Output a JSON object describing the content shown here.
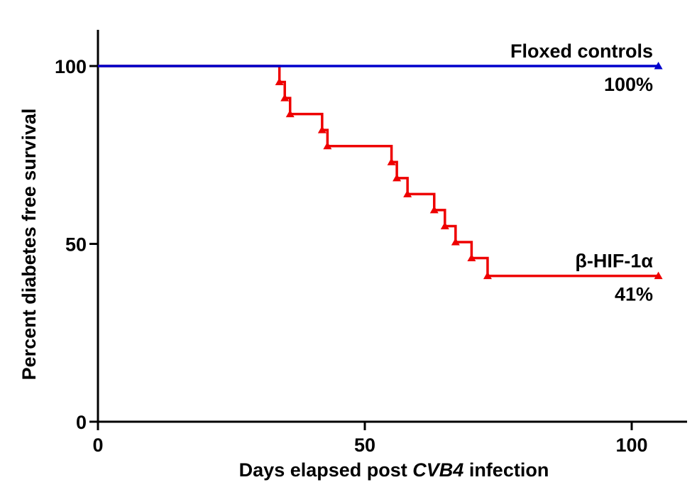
{
  "chart_data": {
    "type": "line",
    "step": true,
    "xlabel_parts": [
      "Days elapsed post ",
      "CVB4",
      " infection"
    ],
    "ylabel": "Percent diabetes free survival",
    "xlim": [
      0,
      110
    ],
    "ylim": [
      0,
      110
    ],
    "xticks": [
      0,
      50,
      100
    ],
    "yticks": [
      0,
      50,
      100
    ],
    "xtick_labels": [
      "0",
      "50",
      "100"
    ],
    "ytick_labels": [
      "0",
      "50",
      "100"
    ],
    "series": [
      {
        "name": "Floxed controls",
        "color": "#0000cc",
        "marker": "triangle",
        "steps": [
          [
            0,
            100
          ],
          [
            105,
            100
          ]
        ],
        "markers": [
          [
            105,
            100
          ]
        ],
        "end_label": "100%"
      },
      {
        "name": "β-HIF-1α",
        "color": "#ee0000",
        "marker": "triangle",
        "steps": [
          [
            0,
            100
          ],
          [
            34,
            95.5
          ],
          [
            35,
            91
          ],
          [
            36,
            86.5
          ],
          [
            42,
            82
          ],
          [
            43,
            77.5
          ],
          [
            55,
            73
          ],
          [
            56,
            68.5
          ],
          [
            58,
            64
          ],
          [
            63,
            59.5
          ],
          [
            65,
            55
          ],
          [
            67,
            50.5
          ],
          [
            70,
            46
          ],
          [
            73,
            41
          ],
          [
            105,
            41
          ]
        ],
        "markers": [
          [
            34,
            95.5
          ],
          [
            35,
            91
          ],
          [
            36,
            86.5
          ],
          [
            42,
            82
          ],
          [
            43,
            77.5
          ],
          [
            55,
            73
          ],
          [
            56,
            68.5
          ],
          [
            58,
            64
          ],
          [
            63,
            59.5
          ],
          [
            65,
            55
          ],
          [
            67,
            50.5
          ],
          [
            70,
            46
          ],
          [
            73,
            41
          ],
          [
            105,
            41
          ]
        ],
        "end_label": "41%"
      }
    ]
  }
}
